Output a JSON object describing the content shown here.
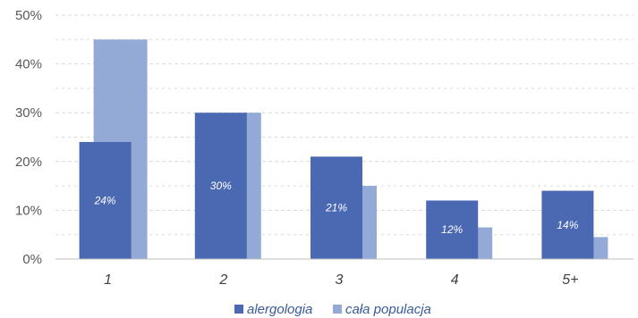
{
  "chart_data": {
    "type": "bar",
    "categories": [
      "1",
      "2",
      "3",
      "4",
      "5+"
    ],
    "series": [
      {
        "name": "alergologia",
        "values": [
          24,
          30,
          21,
          12,
          14
        ],
        "labels": [
          "24%",
          "30%",
          "21%",
          "12%",
          "14%"
        ],
        "color": "#4a69b2"
      },
      {
        "name": "cała populacja",
        "values": [
          45,
          30,
          15,
          6.5,
          4.5
        ],
        "color": "#93a9d6"
      }
    ],
    "y_ticks": [
      "0%",
      "10%",
      "20%",
      "30%",
      "40%",
      "50%"
    ],
    "ylim": [
      0,
      50
    ],
    "grid": true,
    "legend": "bottom-center"
  }
}
